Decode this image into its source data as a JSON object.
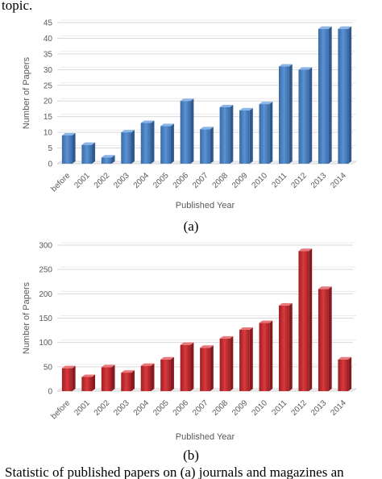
{
  "header_fragment": "topic.",
  "chart_data": [
    {
      "type": "bar",
      "panel_label": "(a)",
      "categories": [
        "before",
        "2001",
        "2002",
        "2003",
        "2004",
        "2005",
        "2006",
        "2007",
        "2008",
        "2009",
        "2010",
        "2011",
        "2012",
        "2013",
        "2014"
      ],
      "values": [
        9,
        6,
        2,
        10,
        13,
        12,
        20,
        11,
        18,
        17,
        19,
        31,
        30,
        43,
        43
      ],
      "xlabel": "Published Year",
      "ylabel": "Number of Papers",
      "ylim": [
        0,
        45
      ],
      "yticks": [
        0,
        5,
        10,
        15,
        20,
        25,
        30,
        35,
        40,
        45
      ],
      "grid": true,
      "color": "#4a7fbf"
    },
    {
      "type": "bar",
      "panel_label": "(b)",
      "categories": [
        "before",
        "2001",
        "2002",
        "2003",
        "2004",
        "2005",
        "2006",
        "2007",
        "2008",
        "2009",
        "2010",
        "2011",
        "2012",
        "2013",
        "2014"
      ],
      "values": [
        47,
        29,
        49,
        38,
        52,
        65,
        95,
        89,
        108,
        126,
        140,
        176,
        288,
        210,
        65
      ],
      "xlabel": "Published Year",
      "ylabel": "Number of Papers",
      "ylim": [
        0,
        300
      ],
      "yticks": [
        0,
        50,
        100,
        150,
        200,
        250,
        300
      ],
      "grid": true,
      "color": "#c0282d"
    }
  ],
  "footer_caption": "Statistic of published papers on (a) journals and magazines an"
}
